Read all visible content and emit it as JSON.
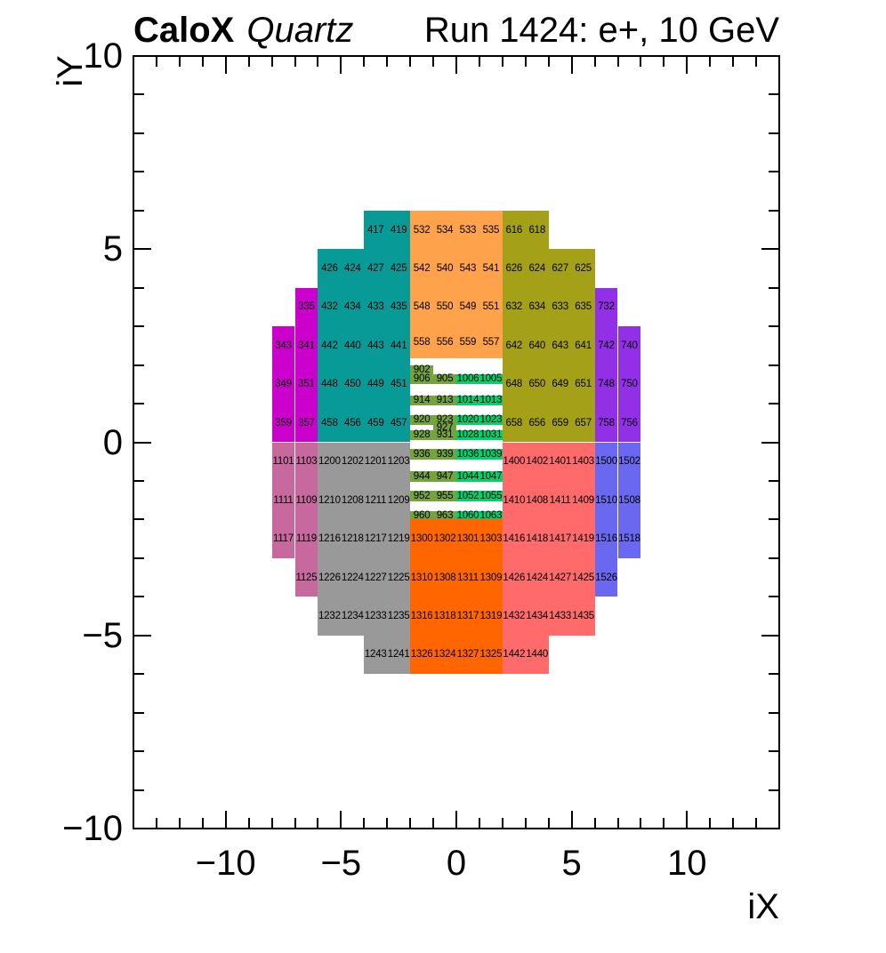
{
  "chart_data": {
    "type": "heatmap",
    "title": {
      "experiment": "CaloX",
      "detector": "Quartz",
      "run": "Run 1424: e+, 10 GeV"
    },
    "axes": {
      "x": {
        "title": "iX",
        "range": [
          -14,
          14
        ],
        "major_ticks": [
          -10,
          -5,
          0,
          5,
          10
        ],
        "major_tick_labels": [
          "−10",
          "−5",
          "0",
          "5",
          "10"
        ],
        "minor_tick_step": 1
      },
      "y": {
        "title": "iY",
        "range": [
          -10,
          10
        ],
        "major_ticks": [
          -10,
          -5,
          0,
          5,
          10
        ],
        "major_tick_labels": [
          "−10",
          "−5",
          "0",
          "5",
          "10"
        ],
        "minor_tick_step": 1
      }
    },
    "background": "#FFFFFF",
    "colors": {
      "magenta": "#CC00CC",
      "teal": "#089A96",
      "orange": "#FFA24C",
      "olive": "#A4A118",
      "violet": "#9230E8",
      "olive_green": "#76A33C",
      "spring_green": "#00D26E",
      "pink": "#C7699E",
      "gray": "#999999",
      "bright_orange": "#FF6600",
      "salmon": "#FF6B6B",
      "blue": "#6A68F0"
    },
    "cell_format": [
      "label",
      "iX_left",
      "iY_top",
      "height_in_iY",
      "color_key"
    ],
    "cell_width_iX": 1,
    "cells": [
      [
        "417",
        -4,
        6,
        1,
        "teal"
      ],
      [
        "419",
        -3,
        6,
        1,
        "teal"
      ],
      [
        "532",
        -2,
        6,
        1,
        "orange"
      ],
      [
        "534",
        -1,
        6,
        1,
        "orange"
      ],
      [
        "533",
        0,
        6,
        1,
        "orange"
      ],
      [
        "535",
        1,
        6,
        1,
        "orange"
      ],
      [
        "616",
        2,
        6,
        1,
        "olive"
      ],
      [
        "618",
        3,
        6,
        1,
        "olive"
      ],
      [
        "426",
        -6,
        5,
        1,
        "teal"
      ],
      [
        "424",
        -5,
        5,
        1,
        "teal"
      ],
      [
        "427",
        -4,
        5,
        1,
        "teal"
      ],
      [
        "425",
        -3,
        5,
        1,
        "teal"
      ],
      [
        "542",
        -2,
        5,
        1,
        "orange"
      ],
      [
        "540",
        -1,
        5,
        1,
        "orange"
      ],
      [
        "543",
        0,
        5,
        1,
        "orange"
      ],
      [
        "541",
        1,
        5,
        1,
        "orange"
      ],
      [
        "626",
        2,
        5,
        1,
        "olive"
      ],
      [
        "624",
        3,
        5,
        1,
        "olive"
      ],
      [
        "627",
        4,
        5,
        1,
        "olive"
      ],
      [
        "625",
        5,
        5,
        1,
        "olive"
      ],
      [
        "335",
        -7,
        4,
        1,
        "magenta"
      ],
      [
        "432",
        -6,
        4,
        1,
        "teal"
      ],
      [
        "434",
        -5,
        4,
        1,
        "teal"
      ],
      [
        "433",
        -4,
        4,
        1,
        "teal"
      ],
      [
        "435",
        -3,
        4,
        1,
        "teal"
      ],
      [
        "548",
        -2,
        4,
        1,
        "orange"
      ],
      [
        "550",
        -1,
        4,
        1,
        "orange"
      ],
      [
        "549",
        0,
        4,
        1,
        "orange"
      ],
      [
        "551",
        1,
        4,
        1,
        "orange"
      ],
      [
        "632",
        2,
        4,
        1,
        "olive"
      ],
      [
        "634",
        3,
        4,
        1,
        "olive"
      ],
      [
        "633",
        4,
        4,
        1,
        "olive"
      ],
      [
        "635",
        5,
        4,
        1,
        "olive"
      ],
      [
        "732",
        6,
        4,
        1,
        "violet"
      ],
      [
        "343",
        -8,
        3,
        1,
        "magenta"
      ],
      [
        "341",
        -7,
        3,
        1,
        "magenta"
      ],
      [
        "442",
        -6,
        3,
        1,
        "teal"
      ],
      [
        "440",
        -5,
        3,
        1,
        "teal"
      ],
      [
        "443",
        -4,
        3,
        1,
        "teal"
      ],
      [
        "441",
        -3,
        3,
        1,
        "teal"
      ],
      [
        "558",
        -2,
        3,
        0.83,
        "orange"
      ],
      [
        "556",
        -1,
        3,
        0.83,
        "orange"
      ],
      [
        "559",
        0,
        3,
        0.83,
        "orange"
      ],
      [
        "557",
        1,
        3,
        0.83,
        "orange"
      ],
      [
        "642",
        2,
        3,
        1,
        "olive"
      ],
      [
        "640",
        3,
        3,
        1,
        "olive"
      ],
      [
        "643",
        4,
        3,
        1,
        "olive"
      ],
      [
        "641",
        5,
        3,
        1,
        "olive"
      ],
      [
        "742",
        6,
        3,
        1,
        "violet"
      ],
      [
        "740",
        7,
        3,
        1,
        "violet"
      ],
      [
        "349",
        -8,
        2,
        1,
        "magenta"
      ],
      [
        "351",
        -7,
        2,
        1,
        "magenta"
      ],
      [
        "448",
        -6,
        2,
        1,
        "teal"
      ],
      [
        "450",
        -5,
        2,
        1,
        "teal"
      ],
      [
        "449",
        -4,
        2,
        1,
        "teal"
      ],
      [
        "451",
        -3,
        2,
        1,
        "teal"
      ],
      [
        "648",
        2,
        2,
        1,
        "olive"
      ],
      [
        "650",
        3,
        2,
        1,
        "olive"
      ],
      [
        "649",
        4,
        2,
        1,
        "olive"
      ],
      [
        "651",
        5,
        2,
        1,
        "olive"
      ],
      [
        "748",
        6,
        2,
        1,
        "violet"
      ],
      [
        "750",
        7,
        2,
        1,
        "violet"
      ],
      [
        "359",
        -8,
        1,
        1,
        "magenta"
      ],
      [
        "357",
        -7,
        1,
        1,
        "magenta"
      ],
      [
        "458",
        -6,
        1,
        1,
        "teal"
      ],
      [
        "456",
        -5,
        1,
        1,
        "teal"
      ],
      [
        "459",
        -4,
        1,
        1,
        "teal"
      ],
      [
        "457",
        -3,
        1,
        1,
        "teal"
      ],
      [
        "658",
        2,
        1,
        1,
        "olive"
      ],
      [
        "656",
        3,
        1,
        1,
        "olive"
      ],
      [
        "659",
        4,
        1,
        1,
        "olive"
      ],
      [
        "657",
        5,
        1,
        1,
        "olive"
      ],
      [
        "758",
        6,
        1,
        1,
        "violet"
      ],
      [
        "756",
        7,
        1,
        1,
        "violet"
      ],
      [
        "902",
        -2,
        1.99,
        0.22,
        "olive_green"
      ],
      [
        "906",
        -2,
        1.77,
        0.27,
        "olive_green"
      ],
      [
        "905",
        -1,
        1.77,
        0.27,
        "olive_green"
      ],
      [
        "1006",
        0,
        1.77,
        0.27,
        "spring_green"
      ],
      [
        "1005",
        1,
        1.77,
        0.27,
        "spring_green"
      ],
      [
        "914",
        -2,
        1.21,
        0.25,
        "olive_green"
      ],
      [
        "913",
        -1,
        1.21,
        0.25,
        "olive_green"
      ],
      [
        "1014",
        0,
        1.21,
        0.25,
        "spring_green"
      ],
      [
        "1013",
        1,
        1.21,
        0.25,
        "spring_green"
      ],
      [
        "920",
        -2,
        0.71,
        0.25,
        "olive_green"
      ],
      [
        "923",
        -1,
        0.71,
        0.25,
        "olive_green"
      ],
      [
        "1020",
        0,
        0.71,
        0.25,
        "spring_green"
      ],
      [
        "1023",
        1,
        0.71,
        0.25,
        "spring_green"
      ],
      [
        "927",
        -1,
        0.46,
        0.15,
        "olive_green"
      ],
      [
        "928",
        -2,
        0.31,
        0.25,
        "olive_green"
      ],
      [
        "931",
        -1,
        0.31,
        0.25,
        "olive_green"
      ],
      [
        "1028",
        0,
        0.31,
        0.25,
        "spring_green"
      ],
      [
        "1031",
        1,
        0.31,
        0.25,
        "spring_green"
      ],
      [
        "936",
        -2,
        -0.17,
        0.27,
        "olive_green"
      ],
      [
        "939",
        -1,
        -0.17,
        0.27,
        "olive_green"
      ],
      [
        "1036",
        0,
        -0.17,
        0.27,
        "spring_green"
      ],
      [
        "1039",
        1,
        -0.17,
        0.27,
        "spring_green"
      ],
      [
        "944",
        -2,
        -0.75,
        0.27,
        "olive_green"
      ],
      [
        "947",
        -1,
        -0.75,
        0.27,
        "olive_green"
      ],
      [
        "1044",
        0,
        -0.75,
        0.27,
        "spring_green"
      ],
      [
        "1047",
        1,
        -0.75,
        0.27,
        "spring_green"
      ],
      [
        "952",
        -2,
        -1.26,
        0.27,
        "olive_green"
      ],
      [
        "955",
        -1,
        -1.26,
        0.27,
        "olive_green"
      ],
      [
        "1052",
        0,
        -1.26,
        0.27,
        "spring_green"
      ],
      [
        "1055",
        1,
        -1.26,
        0.27,
        "spring_green"
      ],
      [
        "960",
        -2,
        -1.78,
        0.25,
        "olive_green"
      ],
      [
        "963",
        -1,
        -1.78,
        0.25,
        "olive_green"
      ],
      [
        "1060",
        0,
        -1.78,
        0.25,
        "spring_green"
      ],
      [
        "1063",
        1,
        -1.78,
        0.25,
        "spring_green"
      ],
      [
        "1101",
        -8,
        0,
        1,
        "pink"
      ],
      [
        "1103",
        -7,
        0,
        1,
        "pink"
      ],
      [
        "1200",
        -6,
        0,
        1,
        "gray"
      ],
      [
        "1202",
        -5,
        0,
        1,
        "gray"
      ],
      [
        "1201",
        -4,
        0,
        1,
        "gray"
      ],
      [
        "1203",
        -3,
        0,
        1,
        "gray"
      ],
      [
        "1400",
        2,
        0,
        1,
        "salmon"
      ],
      [
        "1402",
        3,
        0,
        1,
        "salmon"
      ],
      [
        "1401",
        4,
        0,
        1,
        "salmon"
      ],
      [
        "1403",
        5,
        0,
        1,
        "salmon"
      ],
      [
        "1500",
        6,
        0,
        1,
        "blue"
      ],
      [
        "1502",
        7,
        0,
        1,
        "blue"
      ],
      [
        "1111",
        -8,
        -1,
        1,
        "pink"
      ],
      [
        "1109",
        -7,
        -1,
        1,
        "pink"
      ],
      [
        "1210",
        -6,
        -1,
        1,
        "gray"
      ],
      [
        "1208",
        -5,
        -1,
        1,
        "gray"
      ],
      [
        "1211",
        -4,
        -1,
        1,
        "gray"
      ],
      [
        "1209",
        -3,
        -1,
        1,
        "gray"
      ],
      [
        "1410",
        2,
        -1,
        1,
        "salmon"
      ],
      [
        "1408",
        3,
        -1,
        1,
        "salmon"
      ],
      [
        "1411",
        4,
        -1,
        1,
        "salmon"
      ],
      [
        "1409",
        5,
        -1,
        1,
        "salmon"
      ],
      [
        "1510",
        6,
        -1,
        1,
        "blue"
      ],
      [
        "1508",
        7,
        -1,
        1,
        "blue"
      ],
      [
        "1117",
        -8,
        -2,
        1,
        "pink"
      ],
      [
        "1119",
        -7,
        -2,
        1,
        "pink"
      ],
      [
        "1216",
        -6,
        -2,
        1,
        "gray"
      ],
      [
        "1218",
        -5,
        -2,
        1,
        "gray"
      ],
      [
        "1217",
        -4,
        -2,
        1,
        "gray"
      ],
      [
        "1219",
        -3,
        -2,
        1,
        "gray"
      ],
      [
        "1300",
        -2,
        -2,
        1,
        "bright_orange"
      ],
      [
        "1302",
        -1,
        -2,
        1,
        "bright_orange"
      ],
      [
        "1301",
        0,
        -2,
        1,
        "bright_orange"
      ],
      [
        "1303",
        1,
        -2,
        1,
        "bright_orange"
      ],
      [
        "1416",
        2,
        -2,
        1,
        "salmon"
      ],
      [
        "1418",
        3,
        -2,
        1,
        "salmon"
      ],
      [
        "1417",
        4,
        -2,
        1,
        "salmon"
      ],
      [
        "1419",
        5,
        -2,
        1,
        "salmon"
      ],
      [
        "1516",
        6,
        -2,
        1,
        "blue"
      ],
      [
        "1518",
        7,
        -2,
        1,
        "blue"
      ],
      [
        "1125",
        -7,
        -3,
        1,
        "pink"
      ],
      [
        "1226",
        -6,
        -3,
        1,
        "gray"
      ],
      [
        "1224",
        -5,
        -3,
        1,
        "gray"
      ],
      [
        "1227",
        -4,
        -3,
        1,
        "gray"
      ],
      [
        "1225",
        -3,
        -3,
        1,
        "gray"
      ],
      [
        "1310",
        -2,
        -3,
        1,
        "bright_orange"
      ],
      [
        "1308",
        -1,
        -3,
        1,
        "bright_orange"
      ],
      [
        "1311",
        0,
        -3,
        1,
        "bright_orange"
      ],
      [
        "1309",
        1,
        -3,
        1,
        "bright_orange"
      ],
      [
        "1426",
        2,
        -3,
        1,
        "salmon"
      ],
      [
        "1424",
        3,
        -3,
        1,
        "salmon"
      ],
      [
        "1427",
        4,
        -3,
        1,
        "salmon"
      ],
      [
        "1425",
        5,
        -3,
        1,
        "salmon"
      ],
      [
        "1526",
        6,
        -3,
        1,
        "blue"
      ],
      [
        "1232",
        -6,
        -4,
        1,
        "gray"
      ],
      [
        "1234",
        -5,
        -4,
        1,
        "gray"
      ],
      [
        "1233",
        -4,
        -4,
        1,
        "gray"
      ],
      [
        "1235",
        -3,
        -4,
        1,
        "gray"
      ],
      [
        "1316",
        -2,
        -4,
        1,
        "bright_orange"
      ],
      [
        "1318",
        -1,
        -4,
        1,
        "bright_orange"
      ],
      [
        "1317",
        0,
        -4,
        1,
        "bright_orange"
      ],
      [
        "1319",
        1,
        -4,
        1,
        "bright_orange"
      ],
      [
        "1432",
        2,
        -4,
        1,
        "salmon"
      ],
      [
        "1434",
        3,
        -4,
        1,
        "salmon"
      ],
      [
        "1433",
        4,
        -4,
        1,
        "salmon"
      ],
      [
        "1435",
        5,
        -4,
        1,
        "salmon"
      ],
      [
        "1243",
        -4,
        -5,
        1,
        "gray"
      ],
      [
        "1241",
        -3,
        -5,
        1,
        "gray"
      ],
      [
        "1326",
        -2,
        -5,
        1,
        "bright_orange"
      ],
      [
        "1324",
        -1,
        -5,
        1,
        "bright_orange"
      ],
      [
        "1327",
        0,
        -5,
        1,
        "bright_orange"
      ],
      [
        "1325",
        1,
        -5,
        1,
        "bright_orange"
      ],
      [
        "1442",
        2,
        -5,
        1,
        "salmon"
      ],
      [
        "1440",
        3,
        -5,
        1,
        "salmon"
      ]
    ]
  }
}
